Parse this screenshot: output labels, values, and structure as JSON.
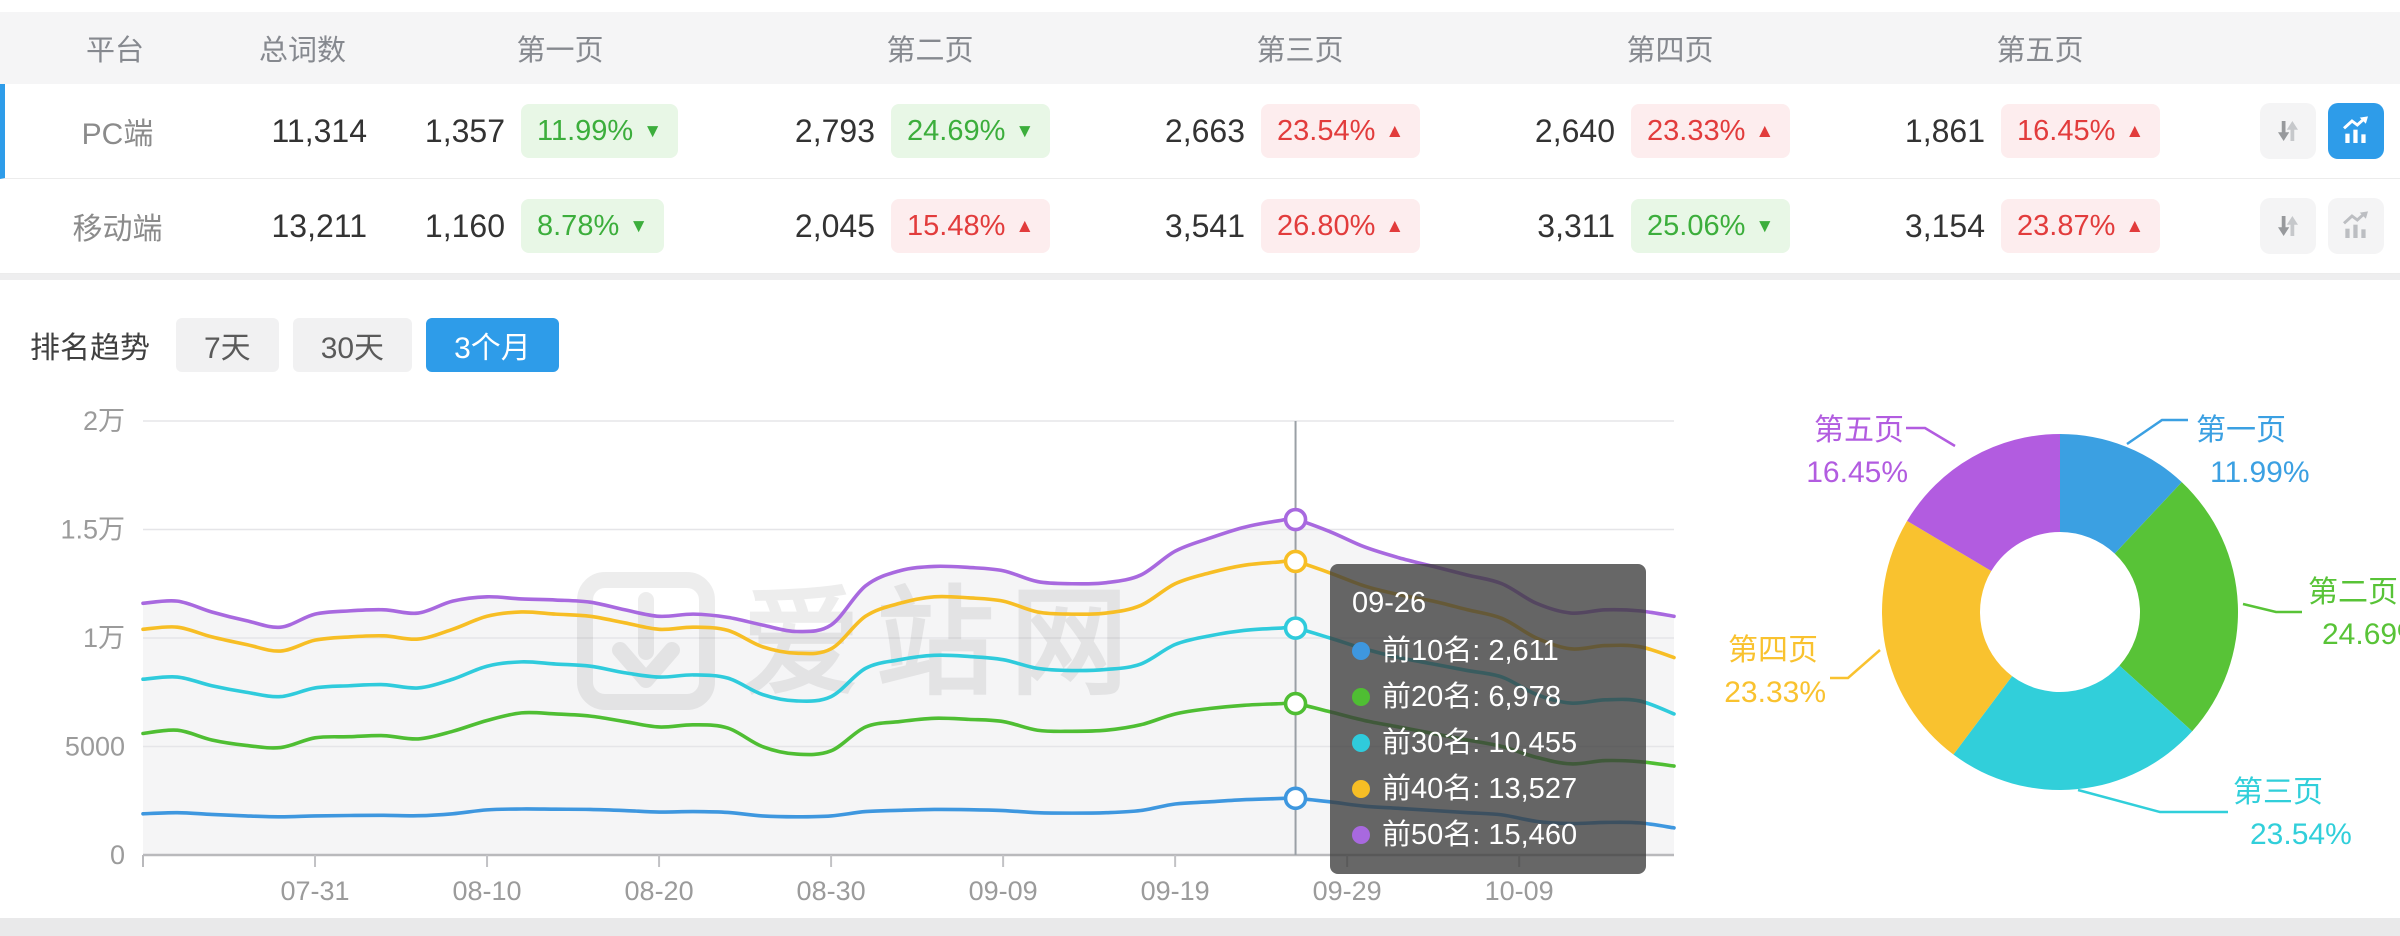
{
  "colors": {
    "accent": "#2E9CE9",
    "badge_up_text": "#E23C3C",
    "badge_up_bg": "#FDEDEE",
    "badge_down_text": "#3CAE3C",
    "badge_down_bg": "#E8F7E6",
    "tooltip_bg": "rgba(60,60,60,0.78)",
    "grid_line": "#e5e5e8",
    "axis_text": "#9b9b9b"
  },
  "table": {
    "headers": [
      "平台",
      "总词数",
      "第一页",
      "第二页",
      "第三页",
      "第四页",
      "第五页"
    ],
    "rows": [
      {
        "platform": "PC端",
        "total": "11,314",
        "selected": true,
        "chart_active": true,
        "pages": [
          {
            "count": "1,357",
            "pct": "11.99%",
            "direction": "down"
          },
          {
            "count": "2,793",
            "pct": "24.69%",
            "direction": "down"
          },
          {
            "count": "2,663",
            "pct": "23.54%",
            "direction": "up"
          },
          {
            "count": "2,640",
            "pct": "23.33%",
            "direction": "up"
          },
          {
            "count": "1,861",
            "pct": "16.45%",
            "direction": "up"
          }
        ]
      },
      {
        "platform": "移动端",
        "total": "13,211",
        "selected": false,
        "chart_active": false,
        "pages": [
          {
            "count": "1,160",
            "pct": "8.78%",
            "direction": "down"
          },
          {
            "count": "2,045",
            "pct": "15.48%",
            "direction": "up"
          },
          {
            "count": "3,541",
            "pct": "26.80%",
            "direction": "up"
          },
          {
            "count": "3,311",
            "pct": "25.06%",
            "direction": "down"
          },
          {
            "count": "3,154",
            "pct": "23.87%",
            "direction": "up"
          }
        ]
      }
    ]
  },
  "trend": {
    "title": "排名趋势",
    "tabs": [
      {
        "label": "7天",
        "active": false
      },
      {
        "label": "30天",
        "active": false
      },
      {
        "label": "3个月",
        "active": true
      }
    ]
  },
  "watermark": "爱站网",
  "chart_data": [
    {
      "type": "line",
      "title": "排名趋势 3个月",
      "x": [
        "07-21",
        "07-23",
        "07-25",
        "07-27",
        "07-29",
        "07-31",
        "08-02",
        "08-04",
        "08-06",
        "08-08",
        "08-10",
        "08-12",
        "08-14",
        "08-16",
        "08-18",
        "08-20",
        "08-22",
        "08-24",
        "08-26",
        "08-28",
        "08-30",
        "09-01",
        "09-03",
        "09-05",
        "09-07",
        "09-09",
        "09-11",
        "09-13",
        "09-15",
        "09-17",
        "09-19",
        "09-21",
        "09-23",
        "09-25",
        "09-26",
        "09-28",
        "09-30",
        "10-02",
        "10-04",
        "10-06",
        "10-08",
        "10-10",
        "10-12",
        "10-14",
        "10-16",
        "10-18"
      ],
      "xticks": [
        "07-31",
        "08-10",
        "08-20",
        "08-30",
        "09-09",
        "09-19",
        "09-29",
        "10-09"
      ],
      "yticks": [
        {
          "v": 0,
          "label": "0"
        },
        {
          "v": 5000,
          "label": "5000"
        },
        {
          "v": 10000,
          "label": "1万"
        },
        {
          "v": 15000,
          "label": "1.5万"
        },
        {
          "v": 20000,
          "label": "2万"
        }
      ],
      "ylim": [
        0,
        20000
      ],
      "grid": true,
      "highlight_x": "09-26",
      "series": [
        {
          "name": "前10名",
          "color": "#3E97DF",
          "values": [
            1900,
            1950,
            1870,
            1800,
            1760,
            1800,
            1820,
            1830,
            1810,
            1900,
            2080,
            2120,
            2110,
            2100,
            2050,
            1980,
            2000,
            1960,
            1800,
            1760,
            1800,
            2000,
            2060,
            2100,
            2090,
            2050,
            1950,
            1930,
            1950,
            2050,
            2350,
            2450,
            2550,
            2600,
            2611,
            2450,
            2250,
            2150,
            2050,
            1950,
            1850,
            1550,
            1450,
            1500,
            1480,
            1250
          ]
        },
        {
          "name": "前20名",
          "color": "#4FBE33",
          "values": [
            5600,
            5750,
            5300,
            5050,
            4950,
            5400,
            5450,
            5500,
            5350,
            5700,
            6200,
            6550,
            6500,
            6400,
            6150,
            5900,
            6000,
            5850,
            5000,
            4650,
            4800,
            5900,
            6150,
            6300,
            6250,
            6150,
            5750,
            5700,
            5750,
            6000,
            6500,
            6750,
            6900,
            6970,
            6978,
            6600,
            6200,
            5900,
            5600,
            5300,
            5000,
            4500,
            4200,
            4350,
            4300,
            4100
          ]
        },
        {
          "name": "前30名",
          "color": "#2FCBDC",
          "values": [
            8100,
            8200,
            7800,
            7500,
            7300,
            7700,
            7800,
            7850,
            7700,
            8100,
            8700,
            8900,
            8800,
            8700,
            8400,
            8200,
            8300,
            8150,
            7400,
            7100,
            7300,
            8600,
            9000,
            9200,
            9150,
            9000,
            8600,
            8500,
            8550,
            8800,
            9700,
            10100,
            10350,
            10450,
            10455,
            10000,
            9500,
            9100,
            8800,
            8500,
            8200,
            7400,
            7000,
            7150,
            7100,
            6500
          ]
        },
        {
          "name": "前40名",
          "color": "#F7BE25",
          "values": [
            10400,
            10500,
            10050,
            9700,
            9400,
            9900,
            10050,
            10100,
            9950,
            10400,
            11000,
            11200,
            11100,
            11000,
            10700,
            10400,
            10500,
            10350,
            9600,
            9300,
            9500,
            11000,
            11600,
            11900,
            11850,
            11700,
            11200,
            11100,
            11150,
            11500,
            12500,
            13000,
            13350,
            13500,
            13527,
            13000,
            12400,
            12000,
            11700,
            11300,
            10900,
            10000,
            9500,
            9650,
            9600,
            9100
          ]
        },
        {
          "name": "前50名",
          "color": "#A869DF",
          "values": [
            11600,
            11700,
            11200,
            10800,
            10500,
            11100,
            11250,
            11300,
            11150,
            11700,
            11900,
            11800,
            11750,
            11650,
            11300,
            11000,
            11100,
            10950,
            10600,
            10300,
            10600,
            12400,
            13100,
            13300,
            13250,
            13100,
            12600,
            12500,
            12550,
            12900,
            14000,
            14600,
            15100,
            15400,
            15460,
            14900,
            14200,
            13700,
            13300,
            12900,
            12500,
            11600,
            11150,
            11300,
            11250,
            11000
          ]
        }
      ],
      "tooltip": {
        "date": "09-26",
        "rows": [
          {
            "name": "前10名",
            "value": "2,611",
            "color": "#3E97DF"
          },
          {
            "name": "前20名",
            "value": "6,978",
            "color": "#4FBE33"
          },
          {
            "name": "前30名",
            "value": "10,455",
            "color": "#2FCBDC"
          },
          {
            "name": "前40名",
            "value": "13,527",
            "color": "#F7BE25"
          },
          {
            "name": "前50名",
            "value": "15,460",
            "color": "#A869DF"
          }
        ]
      }
    },
    {
      "type": "pie",
      "donut": true,
      "slices": [
        {
          "label": "第一页",
          "pct": 11.99,
          "pct_label": "11.99%",
          "color": "#3BA0E2"
        },
        {
          "label": "第二页",
          "pct": 24.69,
          "pct_label": "24.69%",
          "color": "#58C337"
        },
        {
          "label": "第三页",
          "pct": 23.54,
          "pct_label": "23.54%",
          "color": "#31CFDA"
        },
        {
          "label": "第四页",
          "pct": 23.33,
          "pct_label": "23.33%",
          "color": "#F9C22F"
        },
        {
          "label": "第五页",
          "pct": 16.45,
          "pct_label": "16.45%",
          "color": "#B25CE0"
        }
      ]
    }
  ]
}
